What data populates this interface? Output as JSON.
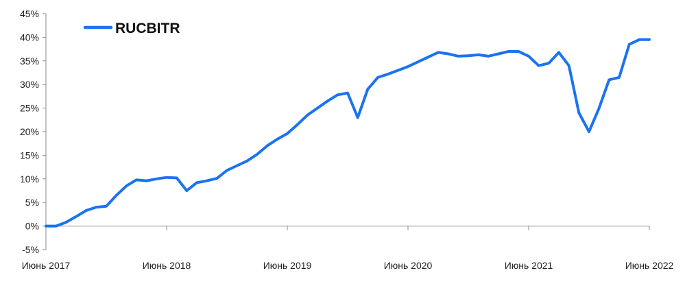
{
  "chart_data": {
    "type": "line",
    "title": "",
    "xlabel": "",
    "ylabel": "",
    "ylim": [
      -5,
      45
    ],
    "y_ticks": [
      -5,
      0,
      5,
      10,
      15,
      20,
      25,
      30,
      35,
      40,
      45
    ],
    "y_tick_labels": [
      "-5%",
      "0%",
      "5%",
      "10%",
      "15%",
      "20%",
      "25%",
      "30%",
      "35%",
      "40%",
      "45%"
    ],
    "xlim": [
      "2017-06",
      "2022-06"
    ],
    "x_tick_labels": [
      "Июнь 2017",
      "Июнь 2018",
      "Июнь 2019",
      "Июнь 2020",
      "Июнь 2021",
      "Июнь 2022"
    ],
    "grid": false,
    "legend": "top-left",
    "colors": {
      "series": "#1a73f0",
      "axis": "#888888"
    },
    "series": [
      {
        "name": "RUCBITR",
        "x": [
          "2017-06",
          "2017-07",
          "2017-08",
          "2017-09",
          "2017-10",
          "2017-11",
          "2017-12",
          "2018-01",
          "2018-02",
          "2018-03",
          "2018-04",
          "2018-05",
          "2018-06",
          "2018-07",
          "2018-08",
          "2018-09",
          "2018-10",
          "2018-11",
          "2018-12",
          "2019-01",
          "2019-02",
          "2019-03",
          "2019-04",
          "2019-05",
          "2019-06",
          "2019-07",
          "2019-08",
          "2019-09",
          "2019-10",
          "2019-11",
          "2019-12",
          "2020-01",
          "2020-02",
          "2020-03",
          "2020-04",
          "2020-05",
          "2020-06",
          "2020-07",
          "2020-08",
          "2020-09",
          "2020-10",
          "2020-11",
          "2020-12",
          "2021-01",
          "2021-02",
          "2021-03",
          "2021-04",
          "2021-05",
          "2021-06",
          "2021-07",
          "2021-08",
          "2021-09",
          "2021-10",
          "2021-11",
          "2021-12",
          "2022-01",
          "2022-02",
          "2022-03",
          "2022-04",
          "2022-05",
          "2022-06"
        ],
        "values": [
          0.0,
          0.0,
          0.8,
          2.0,
          3.3,
          4.0,
          4.2,
          6.5,
          8.5,
          9.8,
          9.6,
          10.0,
          10.3,
          10.2,
          7.5,
          9.2,
          9.6,
          10.1,
          11.8,
          12.8,
          13.8,
          15.2,
          17.0,
          18.4,
          19.6,
          21.5,
          23.5,
          25.0,
          26.5,
          27.8,
          28.2,
          23.0,
          29.0,
          31.5,
          32.2,
          33.0,
          33.8,
          34.8,
          35.8,
          36.8,
          36.5,
          36.0,
          36.1,
          36.3,
          36.0,
          36.5,
          37.0,
          37.0,
          36.0,
          34.0,
          34.5,
          36.8,
          34.0,
          24.0,
          20.0,
          25.0,
          31.0,
          31.5,
          38.5,
          39.5,
          39.5
        ]
      }
    ]
  }
}
